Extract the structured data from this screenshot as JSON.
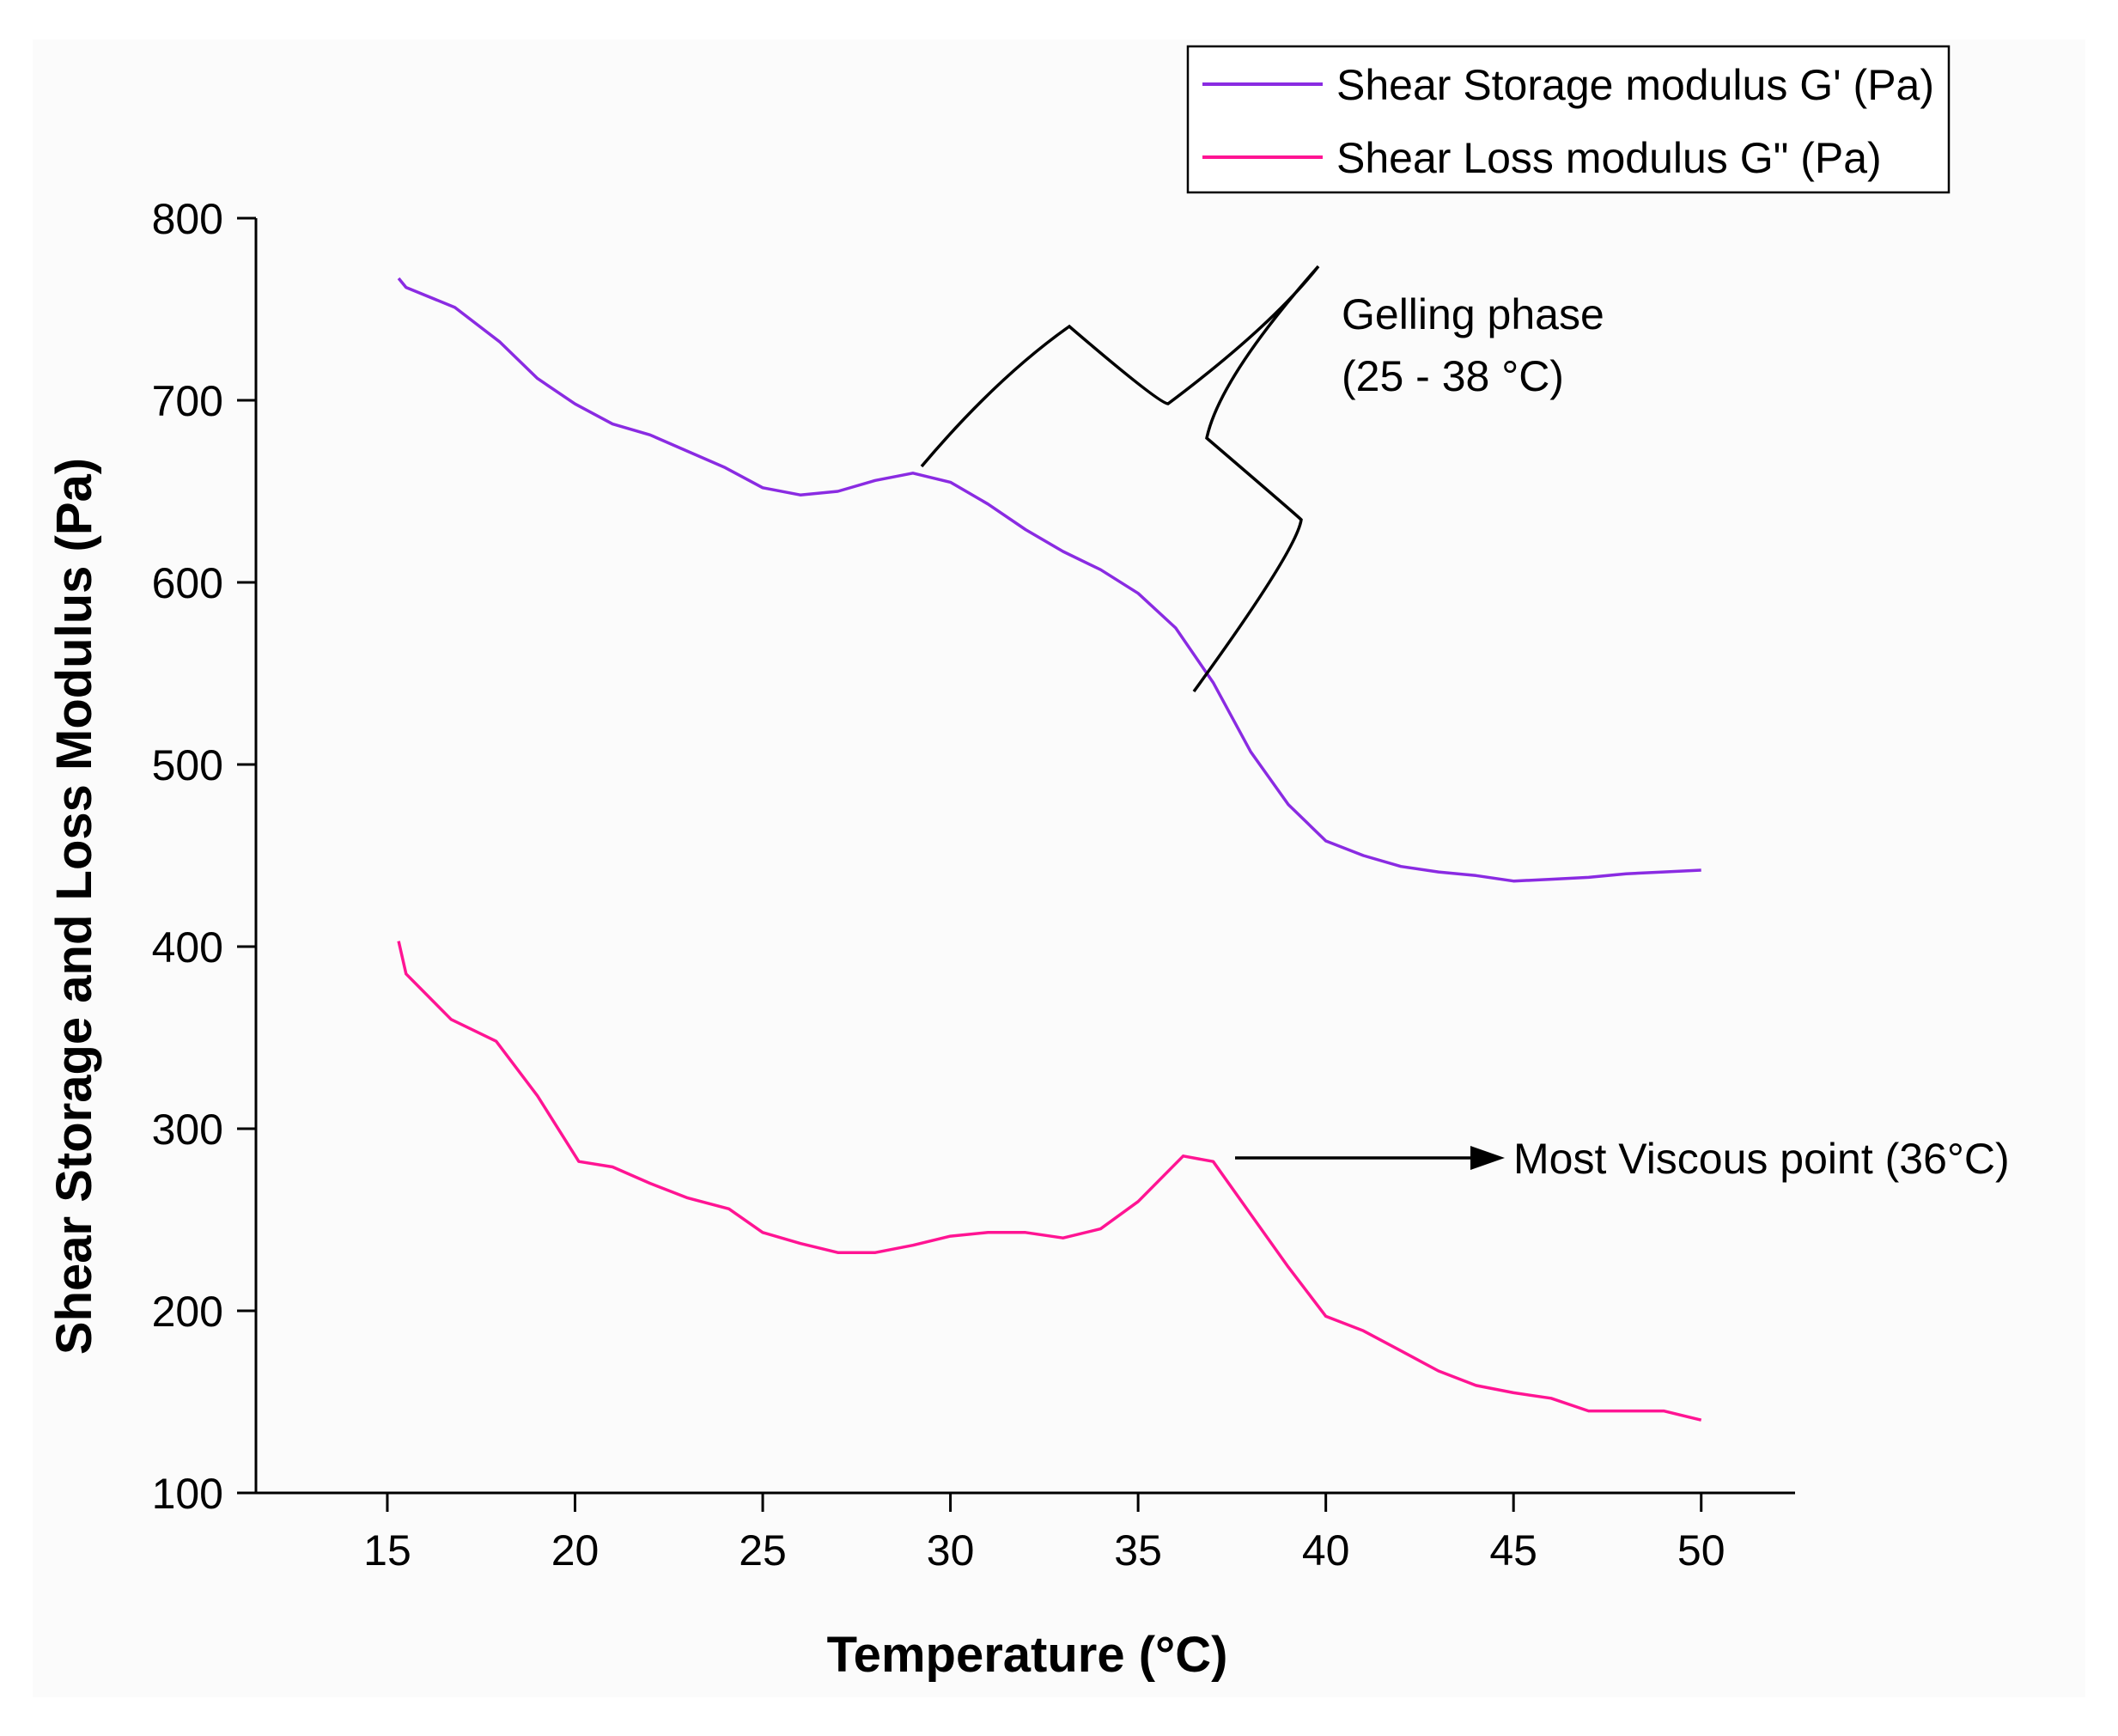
{
  "chart_data": {
    "type": "line",
    "title": "",
    "xlabel": "Temperature (°C)",
    "ylabel": "Shear Storage and Loss Modulus (Pa)",
    "xlim": [
      11.5,
      52.5
    ],
    "ylim": [
      100,
      800
    ],
    "x_ticks": [
      15,
      20,
      25,
      30,
      35,
      40,
      45,
      50
    ],
    "y_ticks": [
      100,
      200,
      300,
      400,
      500,
      600,
      700,
      800
    ],
    "grid": false,
    "legend_position": "top-right",
    "series": [
      {
        "name": "Shear Storage modulus G' (Pa)",
        "color": "#8a2be2",
        "x": [
          15.3,
          15.5,
          16.8,
          18.0,
          19.0,
          20.0,
          21.0,
          22.0,
          23.0,
          24.0,
          25.0,
          26.0,
          27.0,
          28.0,
          29.0,
          30.0,
          31.0,
          32.0,
          33.0,
          34.0,
          35.0,
          36.0,
          37.0,
          38.0,
          39.0,
          40.0,
          41.0,
          42.0,
          43.0,
          44.0,
          45.0,
          46.0,
          47.0,
          48.0,
          49.0,
          50.0
        ],
        "y": [
          767,
          762,
          751,
          732,
          712,
          698,
          687,
          681,
          672,
          663,
          652,
          648,
          650,
          656,
          660,
          655,
          643,
          629,
          617,
          607,
          594,
          575,
          545,
          507,
          478,
          458,
          450,
          444,
          441,
          439,
          436,
          437,
          438,
          440,
          441,
          442
        ]
      },
      {
        "name": "Shear Loss modulus G\" (Pa)",
        "color": "#ff1493",
        "x": [
          15.3,
          15.5,
          16.7,
          17.9,
          19.0,
          20.1,
          21.0,
          22.0,
          23.0,
          24.1,
          25.0,
          26.0,
          27.0,
          28.0,
          29.0,
          30.0,
          31.0,
          32.0,
          33.0,
          34.0,
          35.0,
          36.2,
          37.0,
          38.0,
          39.0,
          40.0,
          41.0,
          42.0,
          43.0,
          44.0,
          45.0,
          46.0,
          47.0,
          48.0,
          49.0,
          50.0
        ],
        "y": [
          403,
          385,
          360,
          348,
          318,
          282,
          279,
          270,
          262,
          256,
          243,
          237,
          232,
          232,
          236,
          241,
          243,
          243,
          240,
          245,
          260,
          285,
          282,
          253,
          224,
          197,
          189,
          178,
          167,
          159,
          155,
          152,
          145,
          145,
          145,
          140
        ]
      }
    ],
    "annotations": {
      "gelling": {
        "line1": "Gelling phase",
        "line2": "(25 - 38 °C)",
        "range": [
          25,
          38
        ]
      },
      "viscous": {
        "text": "Most Viscous point (36°C)",
        "x": 36
      }
    }
  }
}
